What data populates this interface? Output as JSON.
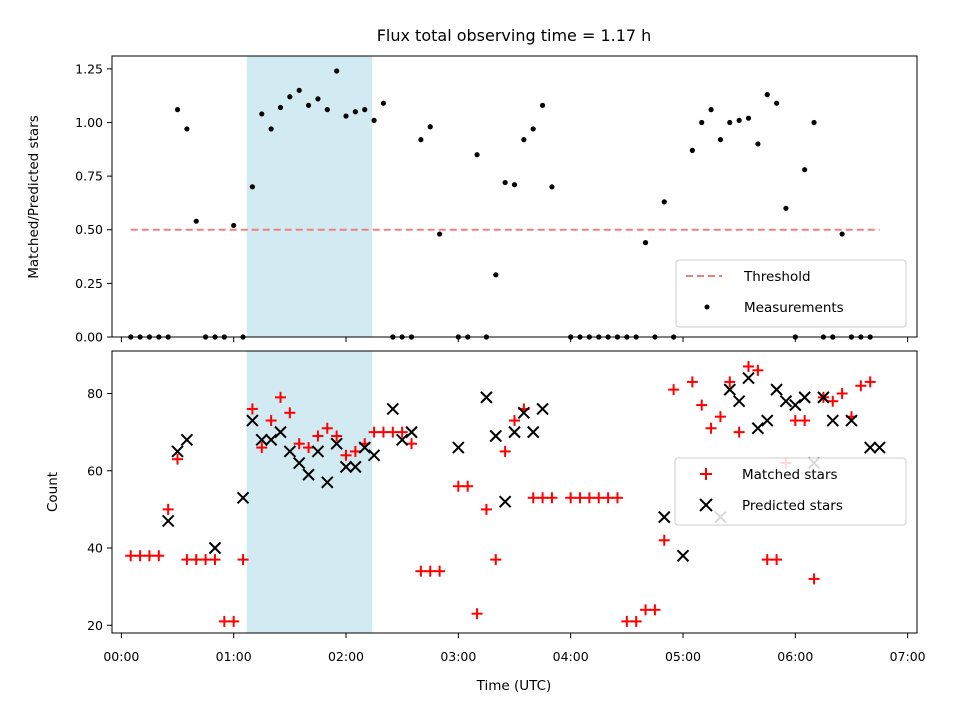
{
  "chart_data": [
    {
      "type": "scatter",
      "title": "Flux total observing time = 1.17 h",
      "xlabel": "",
      "ylabel": "Matched/Predicted stars",
      "x_unit": "time (UTC)",
      "xlim": [
        "23:55",
        "07:05"
      ],
      "ylim": [
        0,
        1.31
      ],
      "yticks": [
        0.0,
        0.25,
        0.5,
        0.75,
        1.0,
        1.25
      ],
      "ytick_labels": [
        "0.00",
        "0.25",
        "0.50",
        "0.75",
        "1.00",
        "1.25"
      ],
      "grid": false,
      "legend_position": "bottom-right",
      "highlight_span": {
        "x": [
          "01:07",
          "02:14"
        ],
        "color": "#add8e6"
      },
      "series": [
        {
          "name": "Threshold",
          "kind": "dashed-line",
          "color": "#f08080",
          "x": [
            "00:05",
            "06:45"
          ],
          "y": [
            0.5,
            0.5
          ]
        },
        {
          "name": "Measurements",
          "kind": "points",
          "color": "#000000",
          "x": [
            "00:05",
            "00:10",
            "00:15",
            "00:20",
            "00:25",
            "00:30",
            "00:35",
            "00:40",
            "00:45",
            "00:50",
            "00:55",
            "01:00",
            "01:05",
            "01:10",
            "01:15",
            "01:20",
            "01:25",
            "01:30",
            "01:35",
            "01:40",
            "01:45",
            "01:50",
            "01:55",
            "02:00",
            "02:05",
            "02:10",
            "02:15",
            "02:20",
            "02:25",
            "02:30",
            "02:35",
            "02:40",
            "02:45",
            "02:50",
            "03:00",
            "03:05",
            "03:10",
            "03:15",
            "03:20",
            "03:25",
            "03:30",
            "03:35",
            "03:40",
            "03:45",
            "03:50",
            "04:00",
            "04:05",
            "04:10",
            "04:15",
            "04:20",
            "04:25",
            "04:30",
            "04:35",
            "04:40",
            "04:45",
            "04:50",
            "04:55",
            "05:05",
            "05:10",
            "05:15",
            "05:20",
            "05:25",
            "05:30",
            "05:35",
            "05:40",
            "05:45",
            "05:50",
            "05:55",
            "06:00",
            "06:05",
            "06:10",
            "06:15",
            "06:20",
            "06:25",
            "06:30",
            "06:35",
            "06:40"
          ],
          "y": [
            0,
            0,
            0,
            0,
            0,
            1.06,
            0.97,
            0.54,
            0,
            0,
            0,
            0.52,
            0,
            0.7,
            1.04,
            0.97,
            1.07,
            1.12,
            1.15,
            1.08,
            1.11,
            1.06,
            1.24,
            1.03,
            1.05,
            1.06,
            1.01,
            1.09,
            0,
            0,
            0,
            0.92,
            0.98,
            0.48,
            0,
            0,
            0.85,
            0,
            0.29,
            0.72,
            0.71,
            0.92,
            0.97,
            1.08,
            0.7,
            0,
            0,
            0,
            0,
            0,
            0,
            0,
            0,
            0.44,
            0,
            0.63,
            0,
            0.87,
            1.0,
            1.06,
            0.92,
            1.0,
            1.01,
            1.02,
            0.9,
            1.13,
            1.09,
            0.6,
            0,
            0.78,
            1.0,
            0,
            0,
            0.48,
            0,
            0,
            0
          ]
        }
      ]
    },
    {
      "type": "scatter",
      "title": "",
      "xlabel": "Time (UTC)",
      "ylabel": "Count",
      "xlim": [
        "23:55",
        "07:05"
      ],
      "xticks": [
        "00:00",
        "01:00",
        "02:00",
        "03:00",
        "04:00",
        "05:00",
        "06:00",
        "07:00"
      ],
      "ylim": [
        18,
        91
      ],
      "yticks": [
        20,
        40,
        60,
        80
      ],
      "ytick_labels": [
        "20",
        "40",
        "60",
        "80"
      ],
      "grid": false,
      "legend_position": "center-right",
      "highlight_span": {
        "x": [
          "01:07",
          "02:14"
        ],
        "color": "#add8e6"
      },
      "series": [
        {
          "name": "Matched stars",
          "marker": "+",
          "color": "#ff0000",
          "x": [
            "00:05",
            "00:10",
            "00:15",
            "00:20",
            "00:25",
            "00:30",
            "00:35",
            "00:40",
            "00:45",
            "00:50",
            "00:55",
            "01:00",
            "01:05",
            "01:10",
            "01:15",
            "01:20",
            "01:25",
            "01:30",
            "01:35",
            "01:40",
            "01:45",
            "01:50",
            "01:55",
            "02:00",
            "02:05",
            "02:10",
            "02:15",
            "02:20",
            "02:25",
            "02:30",
            "02:35",
            "02:40",
            "02:45",
            "02:50",
            "03:00",
            "03:05",
            "03:10",
            "03:15",
            "03:20",
            "03:25",
            "03:30",
            "03:35",
            "03:40",
            "03:45",
            "03:50",
            "04:00",
            "04:05",
            "04:10",
            "04:15",
            "04:20",
            "04:25",
            "04:30",
            "04:35",
            "04:40",
            "04:45",
            "04:50",
            "04:55",
            "05:05",
            "05:10",
            "05:15",
            "05:20",
            "05:25",
            "05:30",
            "05:35",
            "05:40",
            "05:45",
            "05:50",
            "05:55",
            "06:00",
            "06:05",
            "06:10",
            "06:15",
            "06:20",
            "06:25",
            "06:30",
            "06:35",
            "06:40"
          ],
          "y": [
            38,
            38,
            38,
            38,
            50,
            63,
            37,
            37,
            37,
            37,
            21,
            21,
            37,
            76,
            66,
            73,
            79,
            75,
            67,
            66,
            69,
            71,
            69,
            64,
            65,
            67,
            70,
            70,
            70,
            70,
            67,
            34,
            34,
            34,
            56,
            56,
            23,
            50,
            37,
            65,
            73,
            76,
            53,
            53,
            53,
            53,
            53,
            53,
            53,
            53,
            53,
            21,
            21,
            24,
            24,
            42,
            81,
            83,
            77,
            71,
            74,
            83,
            70,
            87,
            86,
            37,
            37,
            62,
            73,
            73,
            32,
            79,
            78,
            80,
            74,
            82,
            83
          ]
        },
        {
          "name": "Predicted stars",
          "marker": "x",
          "color": "#000000",
          "x": [
            "00:25",
            "00:30",
            "00:35",
            "00:50",
            "01:05",
            "01:10",
            "01:15",
            "01:20",
            "01:25",
            "01:30",
            "01:35",
            "01:40",
            "01:45",
            "01:50",
            "01:55",
            "02:00",
            "02:05",
            "02:10",
            "02:15",
            "02:25",
            "02:30",
            "02:35",
            "03:00",
            "03:15",
            "03:20",
            "03:25",
            "03:30",
            "03:35",
            "03:40",
            "03:45",
            "04:50",
            "05:00",
            "05:20",
            "05:25",
            "05:30",
            "05:35",
            "05:40",
            "05:45",
            "05:50",
            "05:55",
            "06:00",
            "06:05",
            "06:10",
            "06:15",
            "06:20",
            "06:30",
            "06:40",
            "06:45"
          ],
          "y": [
            47,
            65,
            68,
            40,
            53,
            73,
            68,
            68,
            70,
            65,
            62,
            59,
            65,
            57,
            67,
            61,
            61,
            66,
            64,
            76,
            68,
            70,
            66,
            79,
            69,
            52,
            70,
            75,
            70,
            76,
            48,
            38,
            48,
            81,
            78,
            84,
            71,
            73,
            81,
            78,
            77,
            79,
            62,
            79,
            73,
            73,
            66,
            66
          ]
        }
      ]
    }
  ]
}
